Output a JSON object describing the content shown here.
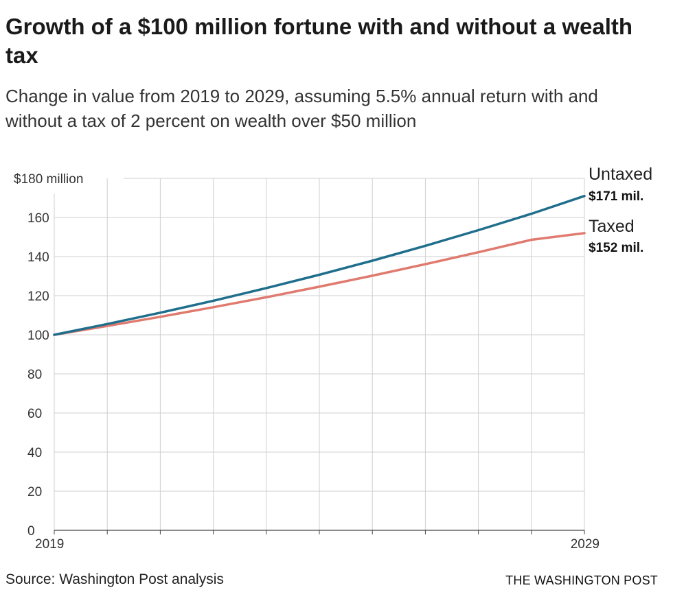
{
  "chart_data": {
    "type": "line",
    "title": "Growth of a $100 million fortune with and without a wealth tax",
    "subtitle": "Change in value from 2019 to 2029, assuming 5.5% annual return with and without a tax of 2 percent on wealth over $50 million",
    "xlim": [
      2019,
      2029
    ],
    "ylim": [
      0,
      180
    ],
    "x_tick_labels": [
      {
        "x": 2019,
        "label": "2019"
      },
      {
        "x": 2029,
        "label": "2029"
      }
    ],
    "y_tick_labels": [
      {
        "y": 180,
        "label": "$180 million"
      },
      {
        "y": 160,
        "label": "160"
      },
      {
        "y": 140,
        "label": "140"
      },
      {
        "y": 120,
        "label": "120"
      },
      {
        "y": 100,
        "label": "100"
      },
      {
        "y": 80,
        "label": "80"
      },
      {
        "y": 60,
        "label": "60"
      },
      {
        "y": 40,
        "label": "40"
      },
      {
        "y": 20,
        "label": "20"
      },
      {
        "y": 0,
        "label": "0"
      }
    ],
    "x": [
      2019,
      2020,
      2021,
      2022,
      2023,
      2024,
      2025,
      2026,
      2027,
      2028,
      2029
    ],
    "series": [
      {
        "name": "Untaxed",
        "end_label": "$171 mil.",
        "color": "#1f6e8c",
        "values": [
          100,
          105.5,
          111.3,
          117.4,
          123.9,
          130.7,
          137.9,
          145.5,
          153.5,
          161.9,
          171
        ]
      },
      {
        "name": "Taxed",
        "end_label": "$152 mil.",
        "color": "#e07a6e",
        "values": [
          100,
          104.5,
          109.2,
          114.1,
          119.2,
          124.6,
          130.2,
          136.1,
          142.2,
          148.6,
          152
        ]
      }
    ],
    "grid": true
  },
  "footer": {
    "source": "Source: Washington Post analysis",
    "credit": "THE WASHINGTON POST"
  }
}
